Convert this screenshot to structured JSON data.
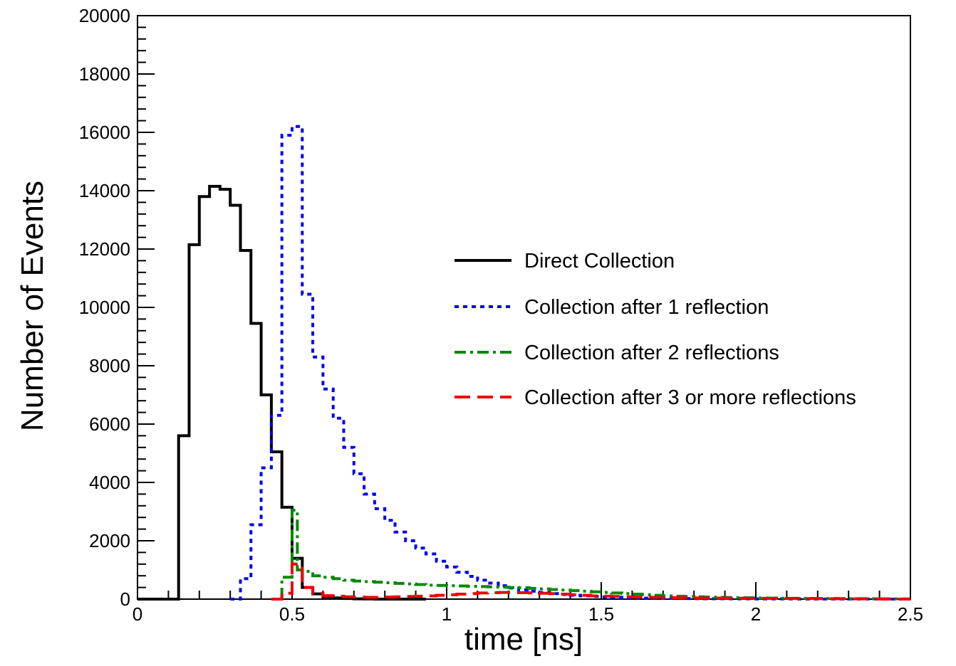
{
  "chart_data": {
    "type": "histogram",
    "title": "",
    "xlabel": "time [ns]",
    "ylabel": "Number of Events",
    "xlim": [
      0,
      2.5
    ],
    "ylim": [
      0,
      20000
    ],
    "grid": false,
    "legend_position": "center-right",
    "x_ticks": [
      {
        "value": 0,
        "label": "0"
      },
      {
        "value": 0.5,
        "label": "0.5"
      },
      {
        "value": 1,
        "label": "1"
      },
      {
        "value": 1.5,
        "label": "1.5"
      },
      {
        "value": 2,
        "label": "2"
      },
      {
        "value": 2.5,
        "label": "2.5"
      }
    ],
    "y_ticks": [
      {
        "value": 0,
        "label": "0"
      },
      {
        "value": 2000,
        "label": "2000"
      },
      {
        "value": 4000,
        "label": "4000"
      },
      {
        "value": 6000,
        "label": "6000"
      },
      {
        "value": 8000,
        "label": "8000"
      },
      {
        "value": 10000,
        "label": "10000"
      },
      {
        "value": 12000,
        "label": "12000"
      },
      {
        "value": 14000,
        "label": "14000"
      },
      {
        "value": 16000,
        "label": "16000"
      },
      {
        "value": 18000,
        "label": "18000"
      },
      {
        "value": 20000,
        "label": "20000"
      }
    ],
    "bin_width": 0.0333,
    "series": [
      {
        "name": "Direct Collection",
        "color": "#000000",
        "dash": "solid",
        "x": [
          0,
          0.033,
          0.067,
          0.1,
          0.133,
          0.167,
          0.2,
          0.233,
          0.267,
          0.3,
          0.333,
          0.367,
          0.4,
          0.433,
          0.467,
          0.5,
          0.533,
          0.567,
          0.6,
          0.633,
          0.667,
          0.7,
          0.733,
          0.767,
          0.8,
          0.833,
          0.867,
          0.9
        ],
        "values": [
          0,
          0,
          0,
          0,
          5600,
          12150,
          13800,
          14150,
          14050,
          13500,
          11950,
          9450,
          7000,
          5050,
          3150,
          1400,
          400,
          180,
          80,
          40,
          20,
          10,
          5,
          0,
          0,
          0,
          0,
          0
        ]
      },
      {
        "name": "Collection after 1 reflection",
        "color": "#0000ee",
        "dash": "dot",
        "x": [
          0.3,
          0.333,
          0.367,
          0.4,
          0.433,
          0.467,
          0.5,
          0.533,
          0.567,
          0.6,
          0.633,
          0.667,
          0.7,
          0.733,
          0.767,
          0.8,
          0.833,
          0.867,
          0.9,
          0.933,
          0.967,
          1.0,
          1.033,
          1.067,
          1.1,
          1.133,
          1.167,
          1.2,
          1.233,
          1.267,
          1.3,
          1.333,
          1.367,
          1.4,
          1.433,
          1.467,
          1.5,
          1.533,
          1.567,
          1.6,
          1.633,
          1.667,
          1.7,
          1.733,
          1.767,
          1.8,
          1.833,
          1.867,
          1.9,
          1.933,
          1.967,
          2.0,
          2.033,
          2.067,
          2.1,
          2.133,
          2.167,
          2.2,
          2.233,
          2.267,
          2.3,
          2.333,
          2.367,
          2.4,
          2.433,
          2.467
        ],
        "values": [
          0,
          700,
          2550,
          4500,
          6300,
          15900,
          16200,
          10450,
          8300,
          7200,
          6200,
          5200,
          4300,
          3600,
          3100,
          2700,
          2300,
          2000,
          1750,
          1550,
          1300,
          1100,
          920,
          780,
          650,
          550,
          460,
          380,
          320,
          270,
          230,
          190,
          160,
          130,
          110,
          90,
          75,
          60,
          50,
          40,
          35,
          30,
          25,
          20,
          18,
          15,
          13,
          11,
          10,
          9,
          8,
          7,
          6,
          5,
          5,
          4,
          4,
          3,
          3,
          3,
          2,
          2,
          2,
          2,
          1,
          1
        ]
      },
      {
        "name": "Collection after 2 reflections",
        "color": "#008800",
        "dash": "dashdot",
        "x": [
          0.467,
          0.5,
          0.517,
          0.533,
          0.567,
          0.6,
          0.633,
          0.667,
          0.7,
          0.733,
          0.767,
          0.8,
          0.833,
          0.867,
          0.9,
          0.933,
          0.967,
          1.0,
          1.033,
          1.067,
          1.1,
          1.133,
          1.167,
          1.2,
          1.233,
          1.267,
          1.3,
          1.333,
          1.367,
          1.4,
          1.433,
          1.467,
          1.5,
          1.533,
          1.567,
          1.6,
          1.633,
          1.667,
          1.7,
          1.733,
          1.767,
          1.8,
          1.833,
          1.867,
          1.9,
          1.933,
          1.967,
          2.0,
          2.033,
          2.067,
          2.1,
          2.133,
          2.167,
          2.2,
          2.233,
          2.267,
          2.3,
          2.333,
          2.367,
          2.4,
          2.433,
          2.467
        ],
        "values": [
          750,
          3050,
          1000,
          950,
          800,
          750,
          700,
          650,
          620,
          600,
          580,
          560,
          540,
          520,
          500,
          480,
          470,
          460,
          450,
          440,
          430,
          420,
          410,
          400,
          390,
          370,
          350,
          330,
          310,
          290,
          270,
          250,
          230,
          210,
          190,
          170,
          150,
          130,
          110,
          100,
          90,
          80,
          70,
          60,
          55,
          50,
          45,
          40,
          35,
          30,
          28,
          26,
          24,
          22,
          20,
          18,
          16,
          14,
          12,
          10,
          8,
          6
        ]
      },
      {
        "name": "Collection after 3 or more reflections",
        "color": "#ee0000",
        "dash": "dash",
        "x": [
          0.433,
          0.467,
          0.5,
          0.533,
          0.567,
          0.6,
          0.633,
          0.667,
          0.7,
          0.733,
          0.767,
          0.8,
          0.833,
          0.867,
          0.9,
          0.933,
          0.967,
          1.0,
          1.033,
          1.067,
          1.1,
          1.133,
          1.167,
          1.2,
          1.233,
          1.267,
          1.3,
          1.333,
          1.367,
          1.4,
          1.433,
          1.467,
          1.5,
          1.533,
          1.567,
          1.6,
          1.633,
          1.667,
          1.7,
          1.733,
          1.767,
          1.8,
          1.833,
          1.867,
          1.9,
          1.933,
          1.967,
          2.0,
          2.033,
          2.067,
          2.1,
          2.133,
          2.167,
          2.2,
          2.233,
          2.267,
          2.3,
          2.333,
          2.367,
          2.4,
          2.433,
          2.467
        ],
        "values": [
          0,
          200,
          1200,
          400,
          200,
          120,
          100,
          80,
          70,
          60,
          60,
          70,
          80,
          90,
          100,
          110,
          130,
          150,
          170,
          190,
          210,
          220,
          230,
          230,
          220,
          210,
          200,
          190,
          170,
          150,
          130,
          110,
          100,
          90,
          80,
          70,
          65,
          60,
          55,
          50,
          45,
          40,
          38,
          36,
          34,
          32,
          30,
          28,
          26,
          24,
          22,
          20,
          18,
          16,
          14,
          12,
          10,
          8,
          6,
          4,
          3,
          2
        ]
      }
    ]
  }
}
